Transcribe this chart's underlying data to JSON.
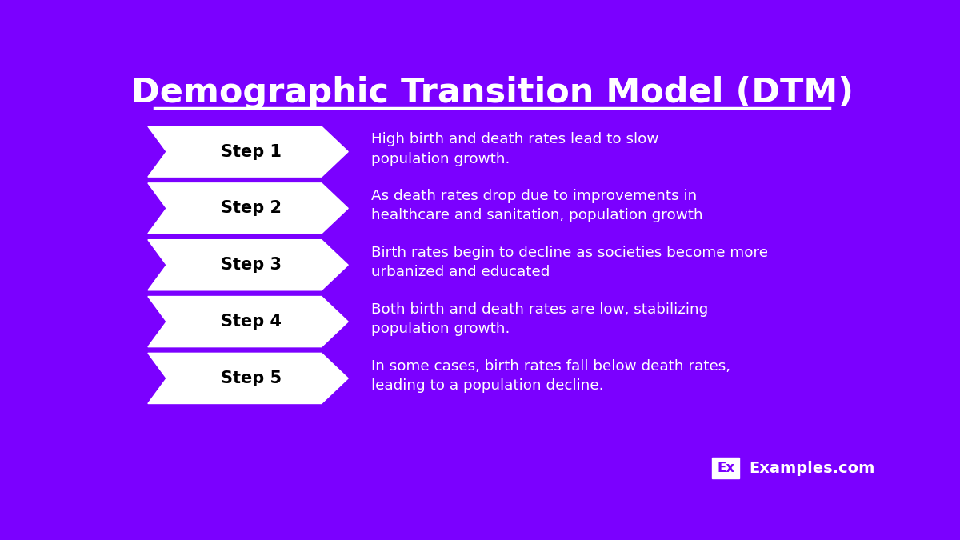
{
  "title": "Demographic Transition Model (DTM)",
  "background_color": "#7B00FF",
  "arrow_fill_color": "#FFFFFF",
  "arrow_edge_color": "#FFFFFF",
  "step_text_color": "#000000",
  "desc_text_color": "#FFFFFF",
  "title_color": "#FFFFFF",
  "steps": [
    "Step 1",
    "Step 2",
    "Step 3",
    "Step 4",
    "Step 5"
  ],
  "descriptions": [
    "High birth and death rates lead to slow\npopulation growth.",
    "As death rates drop due to improvements in\nhealthcare and sanitation, population growth",
    "Birth rates begin to decline as societies become more\nurbanized and educated",
    "Both birth and death rates are low, stabilizing\npopulation growth.",
    "In some cases, birth rates fall below death rates,\nleading to a population decline."
  ],
  "logo_box_color": "#FFFFFF",
  "logo_text_color": "#7B00FF",
  "logo_label_color": "#FFFFFF",
  "watermark": "Examples.com",
  "watermark_ex": "Ex"
}
